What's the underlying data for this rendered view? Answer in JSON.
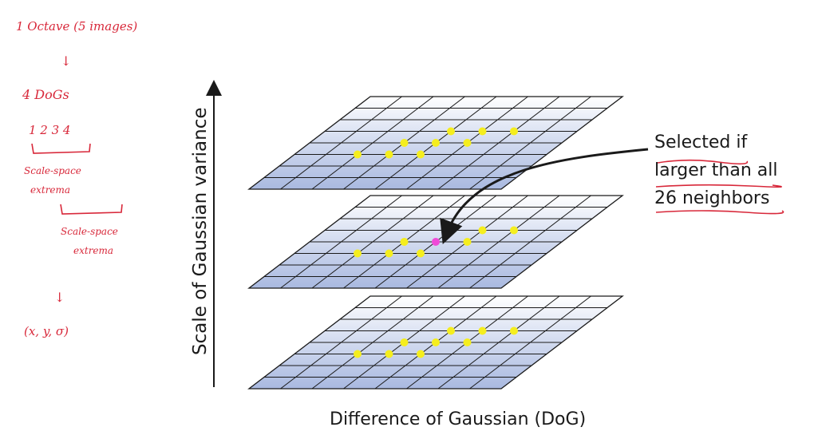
{
  "diagram": {
    "y_axis_label": "Scale of Gaussian variance",
    "x_axis_label": "Difference of Gaussian (DoG)",
    "callout_lines": [
      "Selected if",
      "larger than all",
      "26 neighbors"
    ],
    "layers": [
      {
        "name": "upper DoG layer",
        "neighbors": 9,
        "center_selected": false
      },
      {
        "name": "middle DoG layer",
        "neighbors": 8,
        "center_selected": true
      },
      {
        "name": "lower DoG layer",
        "neighbors": 9,
        "center_selected": false
      }
    ],
    "grid_size": [
      8,
      8
    ],
    "colors": {
      "grid_line": "#1a1a1a",
      "grid_fill_top": "#ffffff",
      "grid_fill_bottom": "#a9b9e0",
      "neighbor_dot": "#f5ee1e",
      "selected_dot": "#f04ad8",
      "ink": "#1a1a1a"
    }
  },
  "annotations": {
    "ink_color": "#d8283a",
    "lines": [
      "1 Octave (5 images)",
      "↓",
      "4 DoGs",
      "1  2  3  4",
      "Scale-space",
      "extrema",
      "Scale-space",
      "extrema",
      "↓",
      "(x, y, σ)"
    ]
  }
}
